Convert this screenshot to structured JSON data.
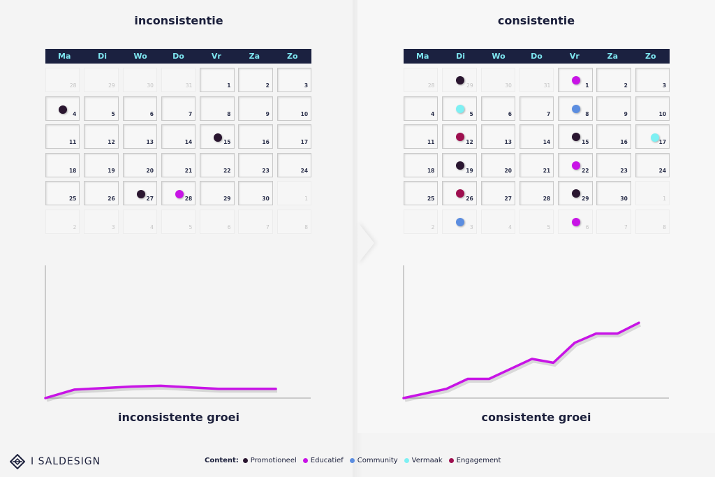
{
  "left": {
    "title": "inconsistentie",
    "graph_title": "inconsistente groei",
    "days": [
      {
        "n": "28",
        "muted": true
      },
      {
        "n": "29",
        "muted": true
      },
      {
        "n": "30",
        "muted": true
      },
      {
        "n": "31",
        "muted": true
      },
      {
        "n": "1"
      },
      {
        "n": "2"
      },
      {
        "n": "3"
      },
      {
        "n": "4",
        "dot": "promotioneel",
        "dpos": "left"
      },
      {
        "n": "5"
      },
      {
        "n": "6"
      },
      {
        "n": "7"
      },
      {
        "n": "8"
      },
      {
        "n": "9"
      },
      {
        "n": "10"
      },
      {
        "n": "11"
      },
      {
        "n": "12"
      },
      {
        "n": "13"
      },
      {
        "n": "14"
      },
      {
        "n": "15",
        "dot": "promotioneel",
        "dpos": "right"
      },
      {
        "n": "16"
      },
      {
        "n": "17"
      },
      {
        "n": "18"
      },
      {
        "n": "19"
      },
      {
        "n": "20"
      },
      {
        "n": "21"
      },
      {
        "n": "22"
      },
      {
        "n": "23"
      },
      {
        "n": "24"
      },
      {
        "n": "25"
      },
      {
        "n": "26"
      },
      {
        "n": "27",
        "dot": "promotioneel",
        "dpos": "right"
      },
      {
        "n": "28",
        "dot": "educatief",
        "dpos": "right"
      },
      {
        "n": "29"
      },
      {
        "n": "30"
      },
      {
        "n": "1",
        "muted": true
      },
      {
        "n": "2",
        "muted": true
      },
      {
        "n": "3",
        "muted": true
      },
      {
        "n": "4",
        "muted": true
      },
      {
        "n": "5",
        "muted": true
      },
      {
        "n": "6",
        "muted": true
      },
      {
        "n": "7",
        "muted": true
      },
      {
        "n": "8",
        "muted": true
      }
    ],
    "line": [
      [
        0,
        0
      ],
      [
        1,
        11
      ],
      [
        2,
        13
      ],
      [
        3,
        15
      ],
      [
        4,
        16
      ],
      [
        5,
        14
      ],
      [
        6,
        12
      ],
      [
        7,
        12
      ],
      [
        8,
        12
      ]
    ]
  },
  "right": {
    "title": "consistentie",
    "graph_title": "consistente groei",
    "days": [
      {
        "n": "28",
        "muted": true
      },
      {
        "n": "29",
        "muted": true,
        "dot": "promotioneel",
        "dpos": "center"
      },
      {
        "n": "30",
        "muted": true
      },
      {
        "n": "31",
        "muted": true
      },
      {
        "n": "1",
        "dot": "educatief",
        "dpos": "center"
      },
      {
        "n": "2"
      },
      {
        "n": "3"
      },
      {
        "n": "4"
      },
      {
        "n": "5",
        "dot": "vermaak",
        "dpos": "center"
      },
      {
        "n": "6"
      },
      {
        "n": "7"
      },
      {
        "n": "8",
        "dot": "community",
        "dpos": "center"
      },
      {
        "n": "9"
      },
      {
        "n": "10"
      },
      {
        "n": "11"
      },
      {
        "n": "12",
        "dot": "engagement",
        "dpos": "center"
      },
      {
        "n": "13"
      },
      {
        "n": "14"
      },
      {
        "n": "15",
        "dot": "promotioneel",
        "dpos": "center"
      },
      {
        "n": "16"
      },
      {
        "n": "17",
        "dot": "vermaak",
        "dpos": "right"
      },
      {
        "n": "18"
      },
      {
        "n": "19",
        "dot": "promotioneel",
        "dpos": "center"
      },
      {
        "n": "20"
      },
      {
        "n": "21"
      },
      {
        "n": "22",
        "dot": "educatief",
        "dpos": "center"
      },
      {
        "n": "23"
      },
      {
        "n": "24"
      },
      {
        "n": "25"
      },
      {
        "n": "26",
        "dot": "engagement",
        "dpos": "center"
      },
      {
        "n": "27"
      },
      {
        "n": "28"
      },
      {
        "n": "29",
        "dot": "promotioneel",
        "dpos": "center"
      },
      {
        "n": "30"
      },
      {
        "n": "1",
        "muted": true
      },
      {
        "n": "2",
        "muted": true
      },
      {
        "n": "3",
        "muted": true,
        "dot": "community",
        "dpos": "center"
      },
      {
        "n": "4",
        "muted": true
      },
      {
        "n": "5",
        "muted": true
      },
      {
        "n": "6",
        "muted": true,
        "dot": "educatief",
        "dpos": "center"
      },
      {
        "n": "7",
        "muted": true
      },
      {
        "n": "8",
        "muted": true
      }
    ],
    "line": [
      [
        0,
        0
      ],
      [
        1,
        6
      ],
      [
        2,
        12
      ],
      [
        3,
        25
      ],
      [
        4,
        25
      ],
      [
        5,
        38
      ],
      [
        6,
        51
      ],
      [
        7,
        46
      ],
      [
        8,
        72
      ],
      [
        9,
        84
      ],
      [
        10,
        84
      ],
      [
        11,
        98
      ]
    ]
  },
  "weekdays": [
    "Ma",
    "Di",
    "Wo",
    "Do",
    "Vr",
    "Za",
    "Zo"
  ],
  "colors": {
    "promotioneel": "#2a1630",
    "educatief": "#c814e6",
    "community": "#5b8de0",
    "vermaak": "#7ef0f3",
    "engagement": "#9e0f4f",
    "header_bg": "#1b2140",
    "header_text": "#7ee6f0",
    "line": "#c814e6"
  },
  "legend": {
    "label": "Content:",
    "items": [
      {
        "key": "promotioneel",
        "label": "Promotioneel"
      },
      {
        "key": "educatief",
        "label": "Educatief"
      },
      {
        "key": "community",
        "label": "Community"
      },
      {
        "key": "vermaak",
        "label": "Vermaak"
      },
      {
        "key": "engagement",
        "label": "Engagement"
      }
    ]
  },
  "logo_text": "I SALDESIGN"
}
